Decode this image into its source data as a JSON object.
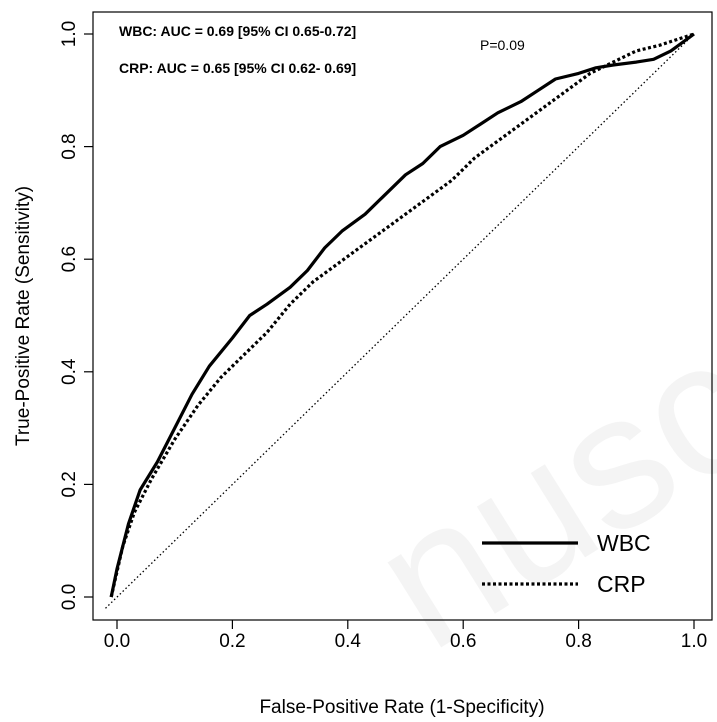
{
  "chart_data": {
    "type": "line",
    "xlabel": "False-Positive Rate (1-Specificity)",
    "ylabel": "True-Positive Rate (Sensitivity)",
    "xlim": [
      -0.04,
      1.04
    ],
    "ylim": [
      -0.04,
      1.04
    ],
    "x_ticks": [
      "0.0",
      "0.2",
      "0.4",
      "0.6",
      "0.8",
      "1.0"
    ],
    "y_ticks": [
      "0.0",
      "0.2",
      "0.4",
      "0.6",
      "0.8",
      "1.0"
    ],
    "annotations": {
      "wbc_auc": "WBC: AUC = 0.69 [95% CI 0.65-0.72]",
      "crp_auc": "CRP:  AUC = 0.65 [95% CI 0.62- 0.69]",
      "p_value": "P=0.09"
    },
    "legend": {
      "position": "bottom-right",
      "entries": [
        "WBC",
        "CRP"
      ]
    },
    "watermark": "nuscr",
    "series": [
      {
        "name": "WBC",
        "style": "solid",
        "x": [
          -0.01,
          0.0,
          0.02,
          0.04,
          0.07,
          0.1,
          0.13,
          0.16,
          0.2,
          0.23,
          0.26,
          0.3,
          0.33,
          0.36,
          0.39,
          0.43,
          0.46,
          0.5,
          0.53,
          0.56,
          0.6,
          0.63,
          0.66,
          0.7,
          0.73,
          0.76,
          0.8,
          0.83,
          0.86,
          0.9,
          0.93,
          0.96,
          1.0
        ],
        "y": [
          0.0,
          0.05,
          0.13,
          0.19,
          0.24,
          0.3,
          0.36,
          0.41,
          0.46,
          0.5,
          0.52,
          0.55,
          0.58,
          0.62,
          0.65,
          0.68,
          0.71,
          0.75,
          0.77,
          0.8,
          0.82,
          0.84,
          0.86,
          0.88,
          0.9,
          0.92,
          0.93,
          0.94,
          0.945,
          0.95,
          0.955,
          0.97,
          1.0
        ]
      },
      {
        "name": "CRP",
        "style": "dotted",
        "x": [
          -0.01,
          0.01,
          0.03,
          0.06,
          0.1,
          0.14,
          0.18,
          0.22,
          0.26,
          0.3,
          0.34,
          0.38,
          0.42,
          0.46,
          0.5,
          0.54,
          0.58,
          0.62,
          0.66,
          0.7,
          0.74,
          0.78,
          0.82,
          0.86,
          0.9,
          0.94,
          0.97,
          1.0
        ],
        "y": [
          0.0,
          0.09,
          0.15,
          0.21,
          0.28,
          0.34,
          0.39,
          0.43,
          0.47,
          0.52,
          0.56,
          0.59,
          0.62,
          0.65,
          0.68,
          0.71,
          0.74,
          0.78,
          0.81,
          0.84,
          0.87,
          0.9,
          0.93,
          0.95,
          0.97,
          0.98,
          0.99,
          1.0
        ]
      },
      {
        "name": "",
        "style": "reference",
        "x": [
          -0.02,
          1.0
        ],
        "y": [
          -0.02,
          1.0
        ]
      }
    ]
  }
}
